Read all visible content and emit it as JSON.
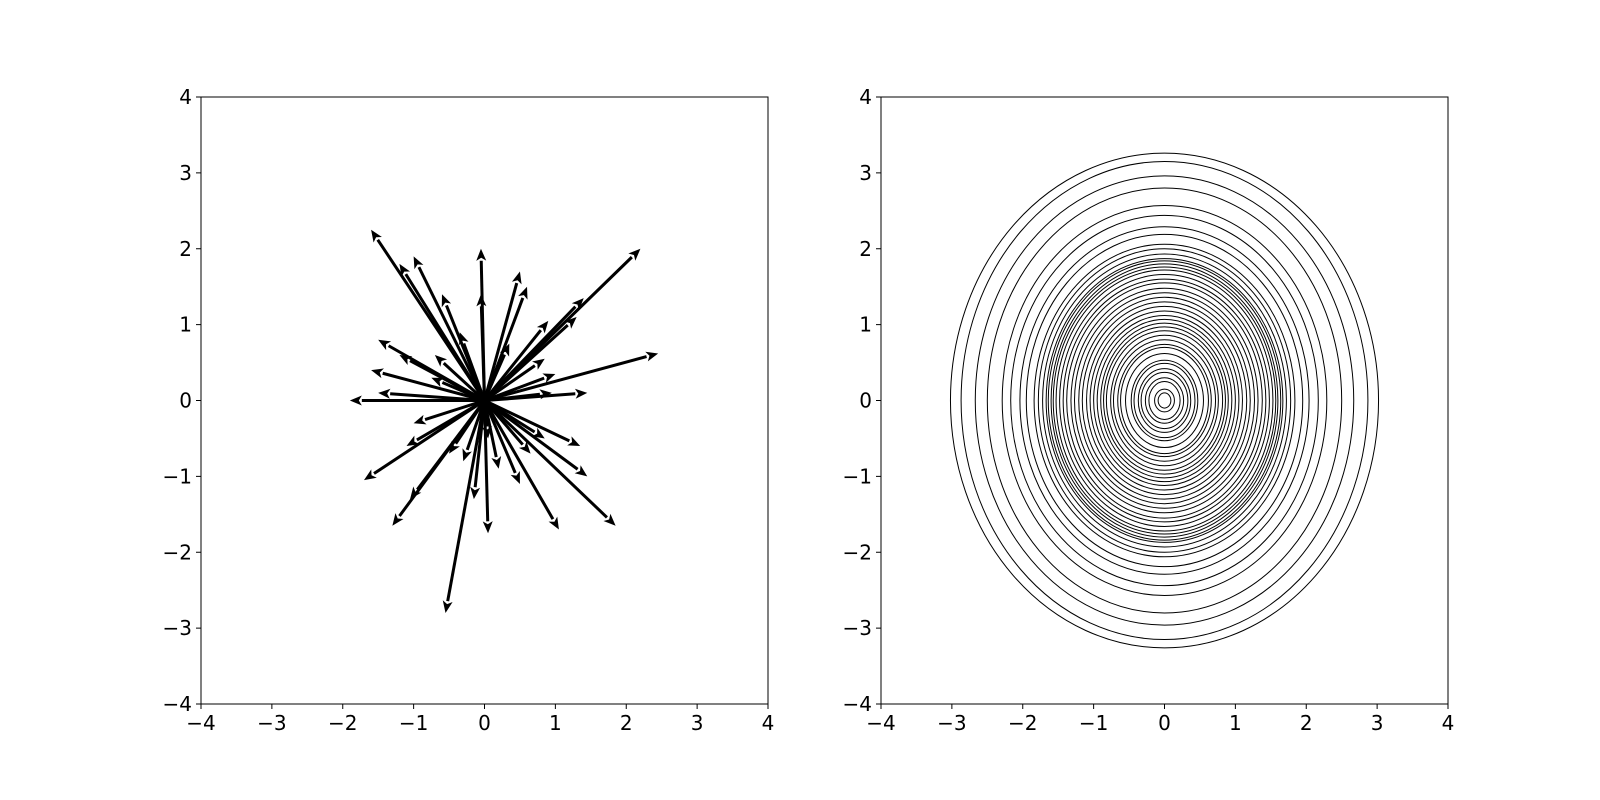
{
  "chart_data": [
    {
      "type": "quiver",
      "title": "",
      "xlabel": "",
      "ylabel": "",
      "xlim": [
        -4,
        4
      ],
      "ylim": [
        -4,
        4
      ],
      "x_ticks": [
        -4,
        -3,
        -2,
        -1,
        0,
        1,
        2,
        3,
        4
      ],
      "y_ticks": [
        -4,
        -3,
        -2,
        -1,
        0,
        1,
        2,
        3,
        4
      ],
      "x_tick_labels": [
        "−4",
        "−3",
        "−2",
        "−1",
        "0",
        "1",
        "2",
        "3",
        "4"
      ],
      "y_tick_labels": [
        "−4",
        "−3",
        "−2",
        "−1",
        "0",
        "1",
        "2",
        "3",
        "4"
      ],
      "grid": false,
      "origin": [
        0,
        0
      ],
      "vectors": [
        [
          2.45,
          0.62
        ],
        [
          2.2,
          2.0
        ],
        [
          1.85,
          -1.65
        ],
        [
          1.05,
          -1.7
        ],
        [
          -0.55,
          -2.8
        ],
        [
          -1.6,
          2.25
        ],
        [
          -1.0,
          1.9
        ],
        [
          -1.2,
          1.8
        ],
        [
          0.5,
          1.7
        ],
        [
          -0.05,
          2.0
        ],
        [
          -1.9,
          0.0
        ],
        [
          -1.7,
          -1.05
        ],
        [
          -1.3,
          -1.65
        ],
        [
          1.45,
          0.1
        ],
        [
          1.45,
          -1.0
        ],
        [
          1.35,
          -0.6
        ],
        [
          1.4,
          1.35
        ],
        [
          1.3,
          1.1
        ],
        [
          0.05,
          -1.75
        ],
        [
          -0.15,
          -1.3
        ],
        [
          -1.5,
          0.8
        ],
        [
          -1.6,
          0.4
        ],
        [
          -1.5,
          0.1
        ],
        [
          -1.1,
          -0.6
        ],
        [
          -1.0,
          -0.3
        ],
        [
          0.85,
          0.55
        ],
        [
          0.95,
          0.1
        ],
        [
          0.85,
          -0.5
        ],
        [
          0.65,
          -0.7
        ],
        [
          0.5,
          -1.1
        ],
        [
          -0.35,
          0.9
        ],
        [
          -0.6,
          1.4
        ],
        [
          -0.05,
          1.4
        ],
        [
          0.35,
          0.75
        ],
        [
          0.2,
          -0.9
        ],
        [
          -0.3,
          -0.8
        ],
        [
          -0.5,
          -0.7
        ],
        [
          -0.7,
          0.6
        ],
        [
          -1.2,
          0.6
        ],
        [
          0.6,
          1.5
        ],
        [
          0.9,
          1.05
        ],
        [
          -1.05,
          -1.3
        ],
        [
          0.05,
          -0.5
        ],
        [
          1.0,
          0.35
        ],
        [
          -0.75,
          0.3
        ]
      ]
    },
    {
      "type": "contour",
      "title": "",
      "xlabel": "",
      "ylabel": "",
      "xlim": [
        -4,
        4
      ],
      "ylim": [
        -4,
        4
      ],
      "x_ticks": [
        -4,
        -3,
        -2,
        -1,
        0,
        1,
        2,
        3,
        4
      ],
      "y_ticks": [
        -4,
        -3,
        -2,
        -1,
        0,
        1,
        2,
        3,
        4
      ],
      "x_tick_labels": [
        "−4",
        "−3",
        "−2",
        "−1",
        "0",
        "1",
        "2",
        "3",
        "4"
      ],
      "y_tick_labels": [
        "−4",
        "−3",
        "−2",
        "−1",
        "0",
        "1",
        "2",
        "3",
        "4"
      ],
      "grid": false,
      "center": [
        0,
        0
      ],
      "rings": [
        {
          "rx": 0.09,
          "ry": 0.1
        },
        {
          "rx": 0.14,
          "ry": 0.15
        },
        {
          "rx": 0.22,
          "ry": 0.25
        },
        {
          "rx": 0.27,
          "ry": 0.3
        },
        {
          "rx": 0.33,
          "ry": 0.37
        },
        {
          "rx": 0.37,
          "ry": 0.42
        },
        {
          "rx": 0.43,
          "ry": 0.49
        },
        {
          "rx": 0.47,
          "ry": 0.53
        },
        {
          "rx": 0.55,
          "ry": 0.62
        },
        {
          "rx": 0.62,
          "ry": 0.7
        },
        {
          "rx": 0.66,
          "ry": 0.74
        },
        {
          "rx": 0.72,
          "ry": 0.8
        },
        {
          "rx": 0.76,
          "ry": 0.86
        },
        {
          "rx": 0.82,
          "ry": 0.92
        },
        {
          "rx": 0.86,
          "ry": 0.97
        },
        {
          "rx": 0.9,
          "ry": 1.02
        },
        {
          "rx": 0.95,
          "ry": 1.07
        },
        {
          "rx": 1.0,
          "ry": 1.12
        },
        {
          "rx": 1.05,
          "ry": 1.18
        },
        {
          "rx": 1.1,
          "ry": 1.24
        },
        {
          "rx": 1.16,
          "ry": 1.3
        },
        {
          "rx": 1.21,
          "ry": 1.36
        },
        {
          "rx": 1.27,
          "ry": 1.42
        },
        {
          "rx": 1.32,
          "ry": 1.48
        },
        {
          "rx": 1.38,
          "ry": 1.55
        },
        {
          "rx": 1.43,
          "ry": 1.6
        },
        {
          "rx": 1.48,
          "ry": 1.66
        },
        {
          "rx": 1.53,
          "ry": 1.72
        },
        {
          "rx": 1.57,
          "ry": 1.76
        },
        {
          "rx": 1.6,
          "ry": 1.8
        },
        {
          "rx": 1.64,
          "ry": 1.84
        },
        {
          "rx": 1.67,
          "ry": 1.87
        },
        {
          "rx": 1.72,
          "ry": 1.93
        },
        {
          "rx": 1.78,
          "ry": 2.0
        },
        {
          "rx": 1.84,
          "ry": 2.06
        },
        {
          "rx": 1.95,
          "ry": 2.19
        },
        {
          "rx": 2.04,
          "ry": 2.29
        },
        {
          "rx": 2.17,
          "ry": 2.44
        },
        {
          "rx": 2.29,
          "ry": 2.57
        },
        {
          "rx": 2.5,
          "ry": 2.8
        },
        {
          "rx": 2.67,
          "ry": 2.96
        },
        {
          "rx": 2.87,
          "ry": 3.15
        },
        {
          "rx": 3.02,
          "ry": 3.26
        }
      ]
    }
  ]
}
